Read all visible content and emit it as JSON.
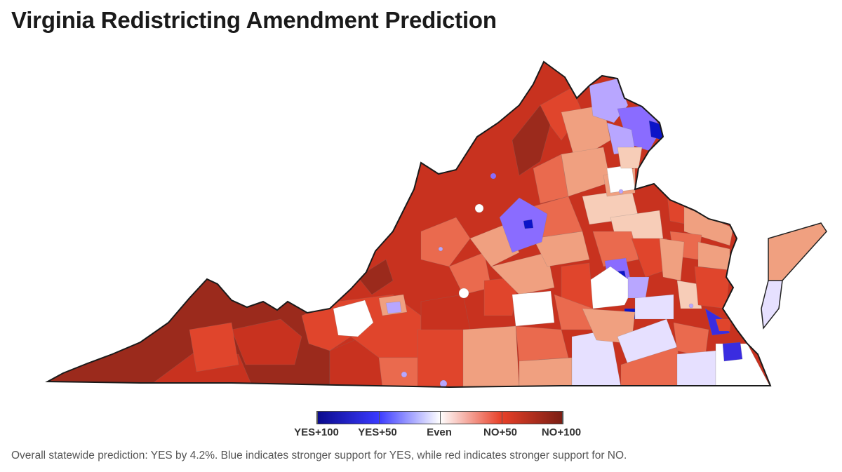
{
  "title": "Virginia Redistricting Amendment Prediction",
  "legend": {
    "labels": [
      "YES+100",
      "YES+50",
      "Even",
      "NO+50",
      "NO+100"
    ],
    "colors": [
      "#0a0a8c",
      "#3a3aff",
      "#ffffff",
      "#e84028",
      "#7a1e14"
    ]
  },
  "caption": "Overall statewide prediction: YES by 4.2%. Blue indicates stronger support for YES, while red indicates stronger support for NO.",
  "palette": {
    "no_100": "#9b2a1c",
    "no_75": "#c8321f",
    "no_50": "#e0452c",
    "no_35": "#ea6a4e",
    "no_20": "#f0a080",
    "no_10": "#f7cdb8",
    "even": "#ffffff",
    "yes_10": "#e6e0ff",
    "yes_30": "#b8a6ff",
    "yes_50": "#8a6cff",
    "yes_80": "#3a2ce0",
    "yes_100": "#0b14c8"
  }
}
